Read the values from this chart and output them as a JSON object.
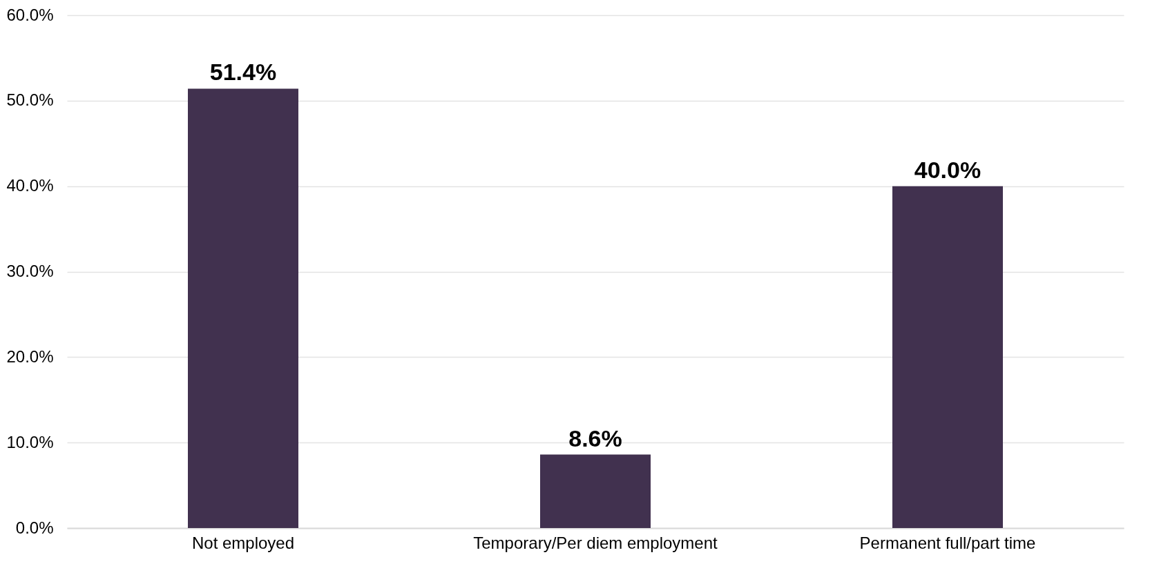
{
  "chart_data": {
    "type": "bar",
    "categories": [
      "Not employed",
      "Temporary/Per diem employment",
      "Permanent full/part time"
    ],
    "values": [
      51.4,
      8.6,
      40.0
    ],
    "value_labels": [
      "51.4%",
      "8.6%",
      "40.0%"
    ],
    "color": "#41314f",
    "ylim": [
      0,
      60
    ],
    "yticks": [
      {
        "value": 0,
        "label": "0.0%"
      },
      {
        "value": 10,
        "label": "10.0%"
      },
      {
        "value": 20,
        "label": "20.0%"
      },
      {
        "value": 30,
        "label": "30.0%"
      },
      {
        "value": 40,
        "label": "40.0%"
      },
      {
        "value": 50,
        "label": "50.0%"
      },
      {
        "value": 60,
        "label": "60.0%"
      }
    ],
    "grid": "y"
  }
}
